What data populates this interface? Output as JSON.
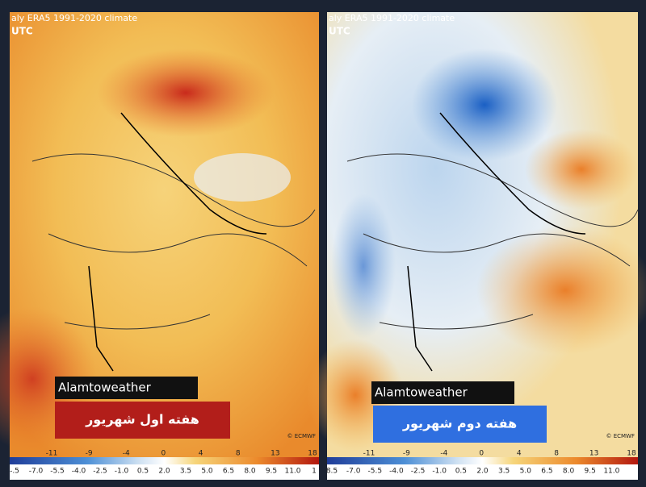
{
  "panels": [
    {
      "header": "aly ERA5 1991-2020 climate",
      "time": "UTC",
      "brand": "Alamtoweather",
      "caption": "هفته اول شهریور",
      "copyright": "© ECMWF",
      "contour_labels": [
        "-11",
        "-9",
        "-4",
        "0",
        "4",
        "8",
        "13",
        "18"
      ],
      "colorbar_labels": [
        "-.5",
        "-7.0",
        "-5.5",
        "-4.0",
        "-2.5",
        "-1.0",
        "0.5",
        "2.0",
        "3.5",
        "5.0",
        "6.5",
        "8.0",
        "9.5",
        "11.0",
        "1"
      ]
    },
    {
      "header": "aly ERA5 1991-2020 climate",
      "time": "UTC",
      "brand": "Alamtoweather",
      "caption": "هفته دوم شهریور",
      "copyright": "© ECMWF",
      "contour_labels": [
        "-11",
        "-9",
        "-4",
        "0",
        "4",
        "8",
        "13",
        "18"
      ],
      "colorbar_labels": [
        "8.5",
        "-7.0",
        "-5.5",
        "-4.0",
        "-2.5",
        "-1.0",
        "0.5",
        "2.0",
        "3.5",
        "5.0",
        "6.5",
        "8.0",
        "9.5",
        "11.0"
      ]
    }
  ]
}
